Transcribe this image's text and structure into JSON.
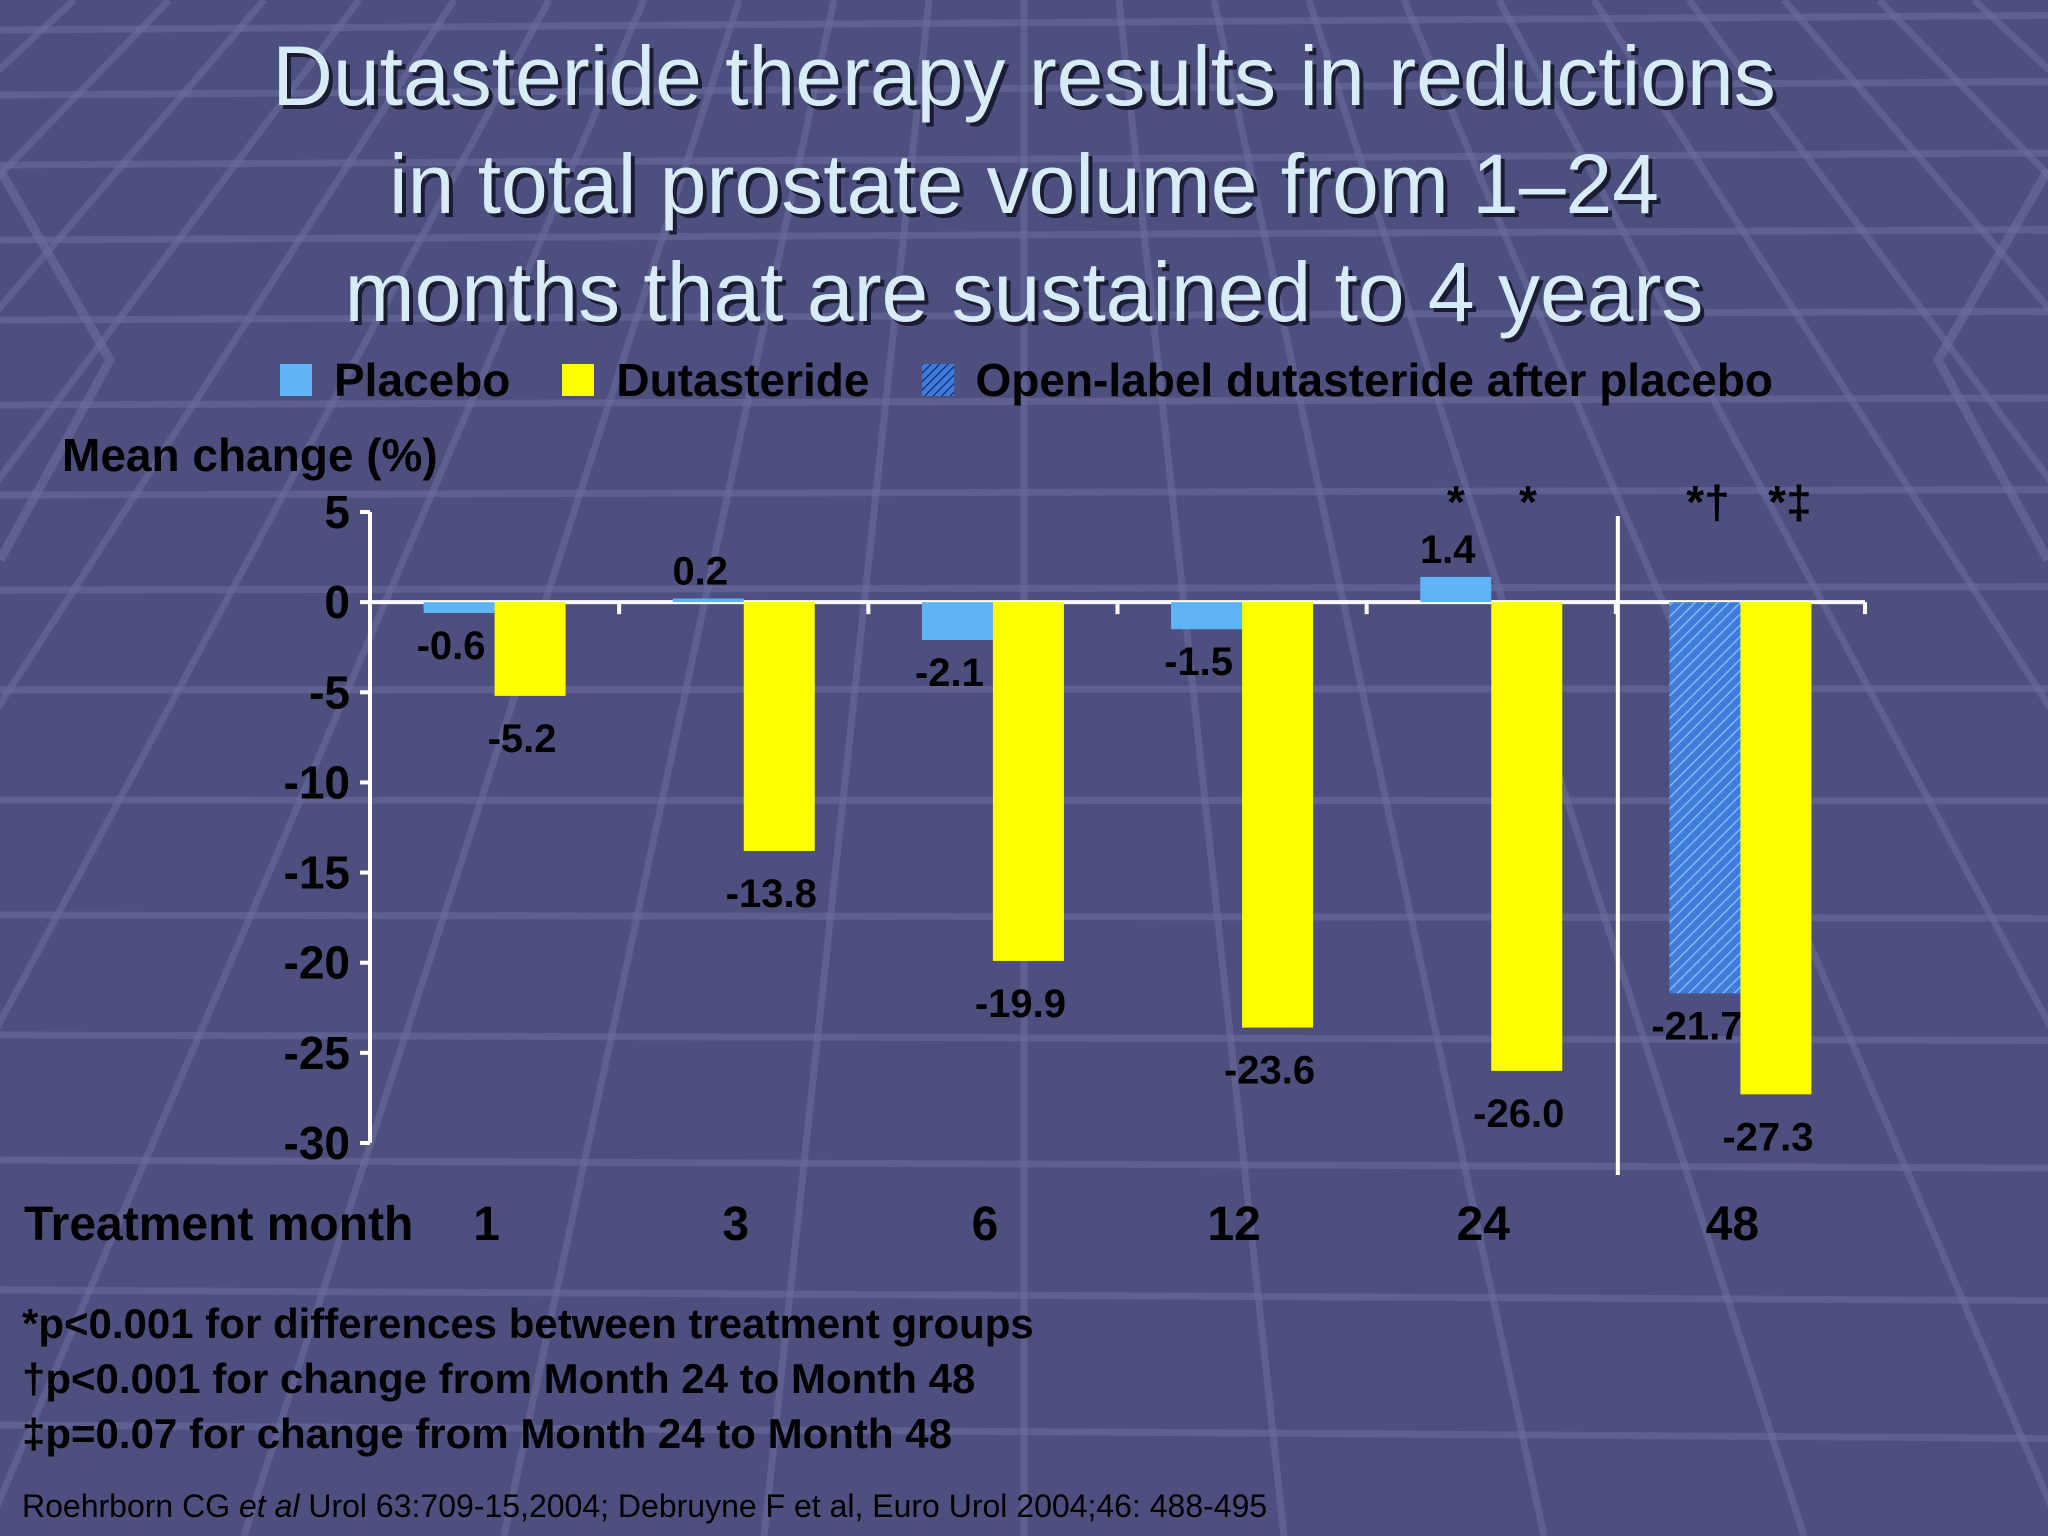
{
  "title": {
    "line1": "Dutasteride therapy results in reductions",
    "line2": "in total prostate volume from 1–24",
    "line3": "months that are sustained to 4 years"
  },
  "legend": {
    "placebo": "Placebo",
    "dutasteride": "Dutasteride",
    "open_label": "Open-label dutasteride after placebo"
  },
  "colors": {
    "placebo": "#5fb4f8",
    "dutasteride": "#ffff00",
    "open_label": "#3f7bd9",
    "background": "#4d4f7e"
  },
  "footnotes": [
    "*p<0.001 for differences between treatment groups",
    "†p<0.001 for change from Month 24 to Month 48",
    "‡p=0.07 for change from Month 24 to Month 48"
  ],
  "citation": {
    "part1": "Roehrborn CG ",
    "italic": "et al",
    "part2": "  Urol 63:709-15,2004; Debruyne F et al, Euro Urol 2004;46: 488-495"
  },
  "chart_data": {
    "type": "bar",
    "ylabel": "Mean change (%)",
    "xlabel": "Treatment month",
    "categories": [
      "1",
      "3",
      "6",
      "12",
      "24",
      "48"
    ],
    "ylim": [
      -30,
      5
    ],
    "yticks": [
      "5",
      "0",
      "-5",
      "-10",
      "-15",
      "-20",
      "-25",
      "-30"
    ],
    "series": [
      {
        "name": "Placebo",
        "values": [
          -0.6,
          0.2,
          -2.1,
          -1.5,
          1.4,
          null
        ],
        "labels": [
          "-0.6",
          "0.2",
          "-2.1",
          "-1.5",
          "1.4",
          ""
        ]
      },
      {
        "name": "Open-label dutasteride after placebo",
        "values": [
          null,
          null,
          null,
          null,
          null,
          -21.7
        ],
        "labels": [
          "",
          "",
          "",
          "",
          "",
          "-21.7"
        ]
      },
      {
        "name": "Dutasteride",
        "values": [
          -5.2,
          -13.8,
          -19.9,
          -23.6,
          -26.0,
          -27.3
        ],
        "labels": [
          "-5.2",
          "-13.8",
          "-19.9",
          "-23.6",
          "-26.0",
          "-27.3"
        ]
      }
    ],
    "annotations": [
      "*",
      "*",
      "*†",
      "*‡"
    ],
    "legend_position": "top"
  }
}
